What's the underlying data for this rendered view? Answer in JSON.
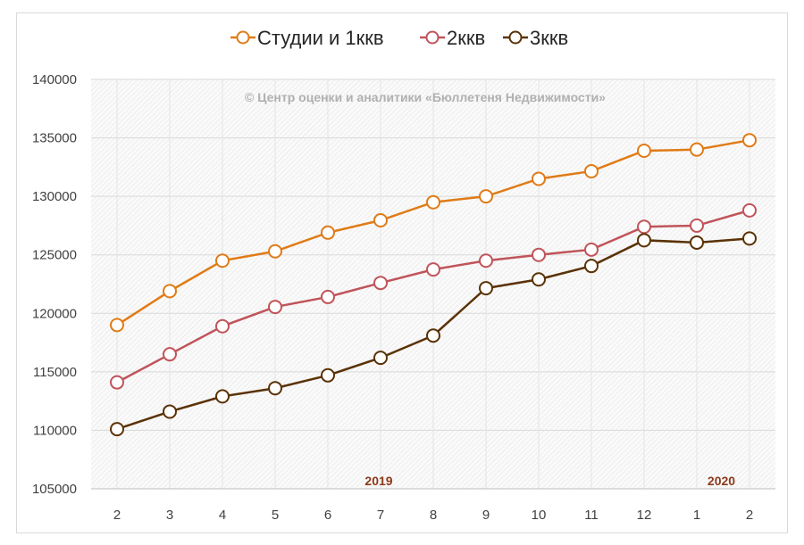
{
  "chart_data": {
    "type": "line",
    "title": "",
    "watermark": "© Центр оценки и аналитики «Бюллетеня Недвижимости»",
    "categories": [
      "2",
      "3",
      "4",
      "5",
      "6",
      "7",
      "8",
      "9",
      "10",
      "11",
      "12",
      "1",
      "2"
    ],
    "year_labels": [
      {
        "text": "2019",
        "at_index": 5
      },
      {
        "text": "2020",
        "at_index": 11.5
      }
    ],
    "ylim": [
      105000,
      140000
    ],
    "yticks": [
      105000,
      110000,
      115000,
      120000,
      125000,
      130000,
      135000,
      140000
    ],
    "grid": true,
    "legend_position": "top",
    "series": [
      {
        "name": "Студии и 1ккв",
        "color": "#e07b17",
        "values": [
          119000,
          121900,
          124500,
          125300,
          126900,
          127950,
          129500,
          130000,
          131500,
          132150,
          133900,
          134000,
          134800
        ]
      },
      {
        "name": "2ккв",
        "color": "#c0545a",
        "values": [
          114100,
          116500,
          118900,
          120550,
          121400,
          122600,
          123750,
          124500,
          125000,
          125450,
          127400,
          127500,
          128800
        ]
      },
      {
        "name": "3ккв",
        "color": "#5a3206",
        "values": [
          110100,
          111600,
          112900,
          113600,
          114700,
          116200,
          118100,
          122150,
          122900,
          124050,
          126250,
          126050,
          126400
        ]
      }
    ],
    "colors": {
      "year_label": "#8b3a1a",
      "watermark": "#b0b0b0"
    }
  }
}
